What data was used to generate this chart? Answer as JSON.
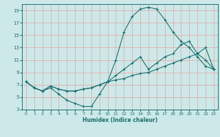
{
  "title": "",
  "xlabel": "Humidex (Indice chaleur)",
  "bg_color": "#cce8e8",
  "grid_color": "#e8a0a0",
  "line_color": "#1a6e6e",
  "xlim": [
    -0.5,
    23.5
  ],
  "ylim": [
    3,
    20
  ],
  "yticks": [
    3,
    5,
    7,
    9,
    11,
    13,
    15,
    17,
    19
  ],
  "xticks": [
    0,
    1,
    2,
    3,
    4,
    5,
    6,
    7,
    8,
    9,
    10,
    11,
    12,
    13,
    14,
    15,
    16,
    17,
    18,
    19,
    20,
    21,
    22,
    23
  ],
  "line1_x": [
    0,
    1,
    2,
    3,
    4,
    5,
    6,
    7,
    8,
    9,
    10,
    11,
    12,
    13,
    14,
    15,
    16,
    17,
    18,
    19,
    20,
    21,
    22,
    23
  ],
  "line1_y": [
    7.5,
    6.5,
    6.0,
    6.5,
    5.5,
    4.5,
    4.0,
    3.5,
    3.5,
    5.5,
    7.5,
    11.0,
    15.5,
    18.0,
    19.2,
    19.5,
    19.2,
    17.5,
    15.5,
    14.0,
    13.0,
    11.5,
    10.0,
    9.5
  ],
  "line2_x": [
    0,
    1,
    2,
    3,
    4,
    5,
    6,
    7,
    8,
    9,
    10,
    11,
    12,
    13,
    14,
    15,
    16,
    17,
    18,
    19,
    20,
    21,
    22,
    23
  ],
  "line2_y": [
    7.5,
    6.5,
    6.0,
    6.8,
    6.3,
    6.0,
    6.0,
    6.3,
    6.5,
    7.0,
    7.5,
    7.8,
    8.0,
    8.5,
    8.8,
    9.0,
    9.5,
    10.0,
    10.5,
    11.0,
    11.5,
    12.0,
    13.0,
    9.5
  ],
  "line3_x": [
    0,
    1,
    2,
    3,
    4,
    5,
    6,
    7,
    8,
    9,
    10,
    11,
    12,
    13,
    14,
    15,
    16,
    17,
    18,
    19,
    20,
    21,
    22,
    23
  ],
  "line3_y": [
    7.5,
    6.5,
    6.0,
    6.8,
    6.3,
    6.0,
    6.0,
    6.3,
    6.5,
    7.0,
    7.5,
    8.5,
    9.5,
    10.5,
    11.5,
    9.5,
    10.5,
    11.5,
    12.0,
    13.5,
    14.0,
    12.0,
    11.0,
    9.5
  ]
}
